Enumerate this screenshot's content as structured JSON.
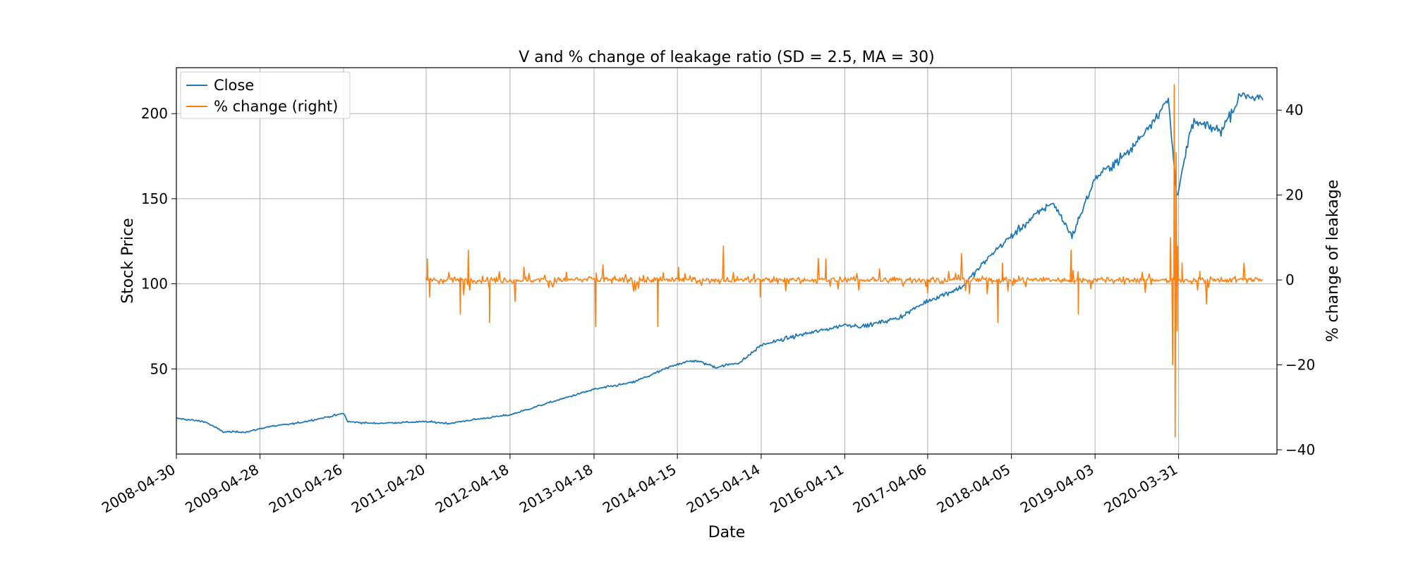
{
  "chart_data": {
    "type": "line",
    "title": "V and % change of leakage ratio (SD = 2.5, MA = 30)",
    "xlabel": "Date",
    "ylabel": "Stock Price",
    "ylabel_right": "% change of leakage",
    "x_tick_labels": [
      "2008-04-30",
      "2009-04-28",
      "2010-04-26",
      "2011-04-20",
      "2012-04-18",
      "2013-04-18",
      "2014-04-15",
      "2015-04-14",
      "2016-04-11",
      "2017-04-06",
      "2018-04-05",
      "2019-04-03",
      "2020-03-31"
    ],
    "y_ticks_left": [
      50,
      100,
      150,
      200
    ],
    "y_ticks_right": [
      -40,
      -20,
      0,
      20,
      40
    ],
    "y_ticks_right_labels": [
      "−40",
      "−20",
      "0",
      "20",
      "40"
    ],
    "ylim_left": [
      0,
      227
    ],
    "ylim_right": [
      -41,
      50
    ],
    "grid": true,
    "legend_position": "top-left",
    "series": [
      {
        "name": "Close",
        "axis": "left",
        "color": "#1f77b4",
        "points": [
          [
            "2008-04-30",
            21
          ],
          [
            "2008-09-01",
            19
          ],
          [
            "2008-11-20",
            13
          ],
          [
            "2009-03-05",
            13
          ],
          [
            "2009-06-01",
            16
          ],
          [
            "2009-10-01",
            18
          ],
          [
            "2010-04-01",
            23
          ],
          [
            "2010-04-26",
            24
          ],
          [
            "2010-05-15",
            19
          ],
          [
            "2010-09-01",
            18
          ],
          [
            "2011-04-20",
            19
          ],
          [
            "2011-08-01",
            18
          ],
          [
            "2011-11-01",
            20
          ],
          [
            "2012-04-18",
            23
          ],
          [
            "2012-10-01",
            30
          ],
          [
            "2013-04-18",
            38
          ],
          [
            "2013-10-01",
            42
          ],
          [
            "2014-01-01",
            47
          ],
          [
            "2014-04-15",
            53
          ],
          [
            "2014-07-01",
            55
          ],
          [
            "2014-10-01",
            51
          ],
          [
            "2015-01-15",
            54
          ],
          [
            "2015-04-14",
            64
          ],
          [
            "2015-10-01",
            70
          ],
          [
            "2016-01-15",
            73
          ],
          [
            "2016-04-11",
            76
          ],
          [
            "2016-07-01",
            75
          ],
          [
            "2016-12-01",
            80
          ],
          [
            "2017-04-06",
            90
          ],
          [
            "2017-09-01",
            98
          ],
          [
            "2018-01-20",
            119
          ],
          [
            "2018-04-05",
            128
          ],
          [
            "2018-07-15",
            140
          ],
          [
            "2018-10-01",
            148
          ],
          [
            "2018-12-24",
            128
          ],
          [
            "2019-04-03",
            162
          ],
          [
            "2019-09-01",
            178
          ],
          [
            "2020-02-15",
            208
          ],
          [
            "2020-03-23",
            152
          ],
          [
            "2020-06-01",
            195
          ],
          [
            "2020-10-01",
            190
          ],
          [
            "2020-12-31",
            212
          ],
          [
            "2021-04-01",
            208
          ]
        ]
      },
      {
        "name": "% change (right)",
        "axis": "right",
        "color": "#ff7f0e",
        "start": "2011-04-20",
        "end": "2021-04-01",
        "points": [
          [
            "2011-04-20",
            0
          ],
          [
            "2011-04-25",
            5
          ],
          [
            "2011-05-05",
            -4
          ],
          [
            "2011-09-15",
            -8
          ],
          [
            "2011-10-20",
            7
          ],
          [
            "2012-01-20",
            -10
          ],
          [
            "2013-04-25",
            -11
          ],
          [
            "2014-01-20",
            -11
          ],
          [
            "2014-04-20",
            3
          ],
          [
            "2014-11-01",
            8
          ],
          [
            "2015-04-10",
            -4
          ],
          [
            "2016-01-20",
            5
          ],
          [
            "2017-04-06",
            -3
          ],
          [
            "2018-02-05",
            -10
          ],
          [
            "2018-02-25",
            4
          ],
          [
            "2018-12-20",
            7
          ],
          [
            "2019-01-20",
            -8
          ],
          [
            "2020-02-25",
            10
          ],
          [
            "2020-03-05",
            -20
          ],
          [
            "2020-03-12",
            46
          ],
          [
            "2020-03-16",
            -37
          ],
          [
            "2020-03-20",
            30
          ],
          [
            "2020-03-24",
            -12
          ],
          [
            "2020-03-27",
            8
          ],
          [
            "2020-04-15",
            4
          ],
          [
            "2020-07-01",
            2
          ]
        ]
      }
    ]
  }
}
